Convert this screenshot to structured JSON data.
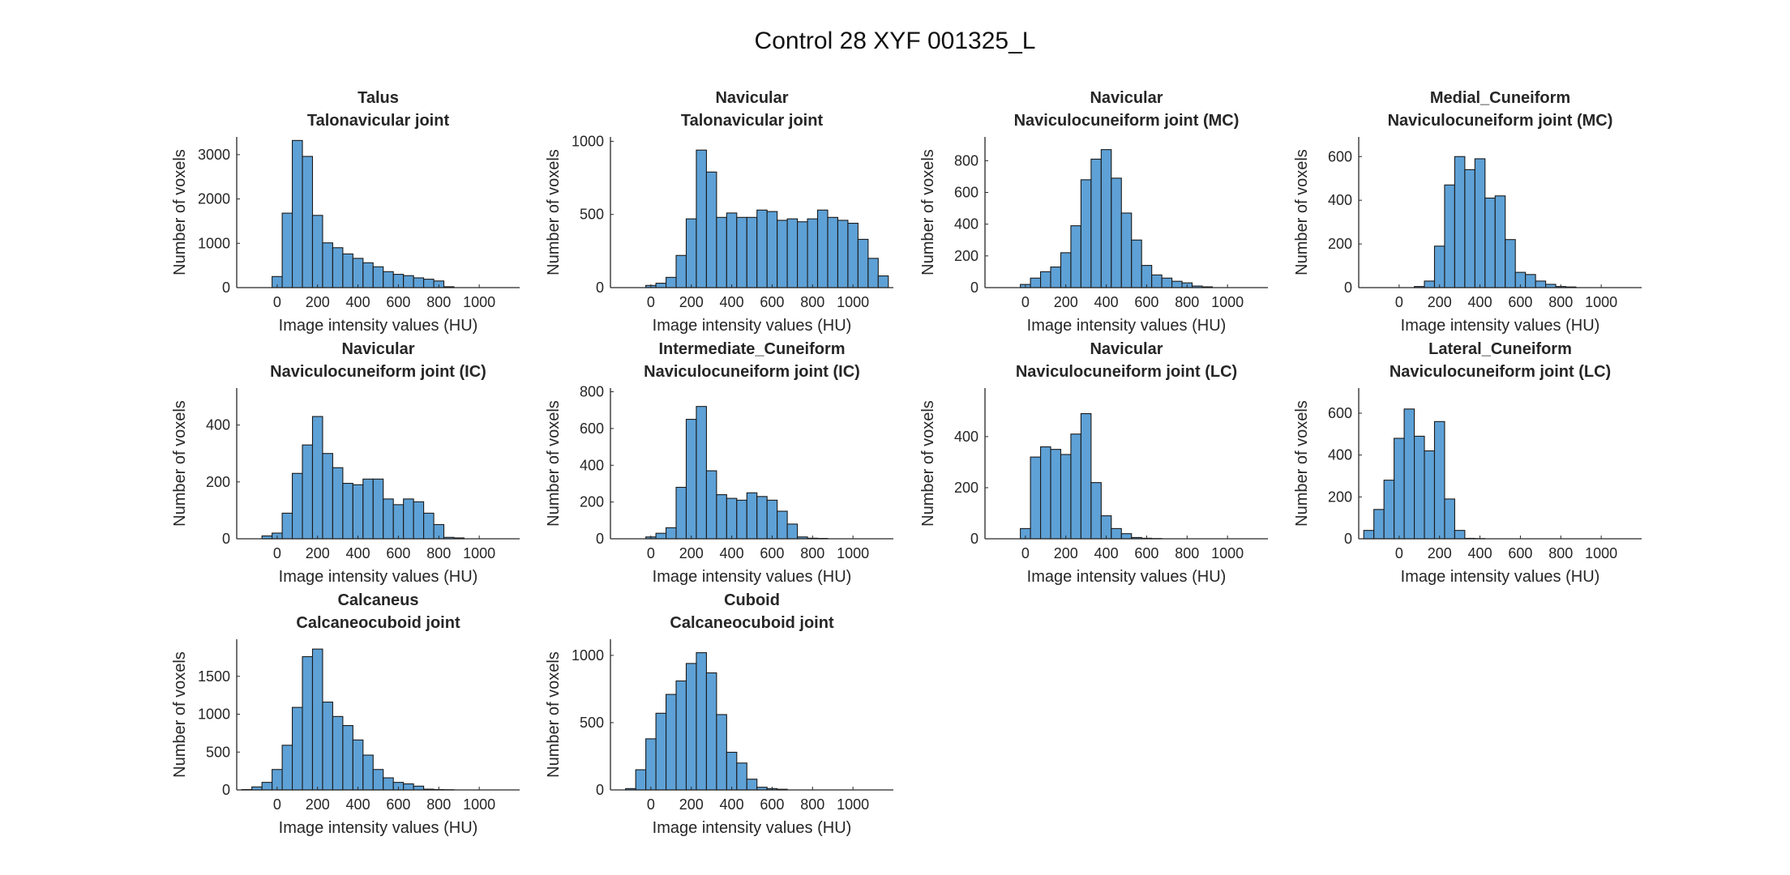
{
  "figure": {
    "title": "Control 28 XYF 001325_L"
  },
  "style": {
    "bar_fill": "#5ea1d6",
    "bar_stroke": "#1a1a1a",
    "axis_color": "#262626",
    "background": "#ffffff"
  },
  "chart_data": [
    {
      "type": "bar",
      "title": [
        "Talus",
        "Talonavicular joint"
      ],
      "xlabel": "Image intensity values (HU)",
      "ylabel": "Number of voxels",
      "bin_width": 50,
      "xlim": [
        -200,
        1200
      ],
      "ylim": [
        0,
        3400
      ],
      "xticks": [
        0,
        200,
        400,
        600,
        800,
        1000
      ],
      "yticks": [
        0,
        1000,
        2000,
        3000
      ],
      "bin_starts": [
        -25,
        25,
        75,
        125,
        175,
        225,
        275,
        325,
        375,
        425,
        475,
        525,
        575,
        625,
        675,
        725,
        775,
        825
      ],
      "values": [
        250,
        1680,
        3320,
        2960,
        1630,
        1010,
        900,
        760,
        660,
        560,
        470,
        360,
        300,
        270,
        220,
        190,
        150,
        20
      ]
    },
    {
      "type": "bar",
      "title": [
        "Navicular",
        "Talonavicular joint"
      ],
      "xlabel": "Image intensity values (HU)",
      "ylabel": "Number of voxels",
      "bin_width": 50,
      "xlim": [
        -200,
        1200
      ],
      "ylim": [
        0,
        1030
      ],
      "xticks": [
        0,
        200,
        400,
        600,
        800,
        1000
      ],
      "yticks": [
        0,
        500,
        1000
      ],
      "bin_starts": [
        -25,
        25,
        75,
        125,
        175,
        225,
        275,
        325,
        375,
        425,
        475,
        525,
        575,
        625,
        675,
        725,
        775,
        825,
        875,
        925,
        975,
        1025,
        1075,
        1125
      ],
      "values": [
        15,
        30,
        70,
        220,
        470,
        940,
        790,
        480,
        510,
        480,
        480,
        530,
        520,
        460,
        470,
        450,
        470,
        530,
        480,
        460,
        440,
        330,
        200,
        80
      ]
    },
    {
      "type": "bar",
      "title": [
        "Navicular",
        "Naviculocuneiform joint (MC)"
      ],
      "xlabel": "Image intensity values (HU)",
      "ylabel": "Number of voxels",
      "bin_width": 50,
      "xlim": [
        -200,
        1200
      ],
      "ylim": [
        0,
        950
      ],
      "xticks": [
        0,
        200,
        400,
        600,
        800,
        1000
      ],
      "yticks": [
        0,
        200,
        400,
        600,
        800
      ],
      "bin_starts": [
        -25,
        25,
        75,
        125,
        175,
        225,
        275,
        325,
        375,
        425,
        475,
        525,
        575,
        625,
        675,
        725,
        775,
        825,
        875
      ],
      "values": [
        20,
        60,
        100,
        130,
        220,
        390,
        680,
        810,
        870,
        690,
        470,
        300,
        140,
        80,
        60,
        40,
        30,
        10,
        5
      ]
    },
    {
      "type": "bar",
      "title": [
        "Medial_Cuneiform",
        "Naviculocuneiform joint (MC)"
      ],
      "xlabel": "Image intensity values (HU)",
      "ylabel": "Number of voxels",
      "bin_width": 50,
      "xlim": [
        -200,
        1200
      ],
      "ylim": [
        0,
        690
      ],
      "xticks": [
        0,
        200,
        400,
        600,
        800,
        1000
      ],
      "yticks": [
        0,
        200,
        400,
        600
      ],
      "bin_starts": [
        75,
        125,
        175,
        225,
        275,
        325,
        375,
        425,
        475,
        525,
        575,
        625,
        675,
        725,
        775,
        825
      ],
      "values": [
        5,
        30,
        190,
        470,
        600,
        540,
        590,
        410,
        420,
        220,
        70,
        60,
        30,
        15,
        5,
        3
      ]
    },
    {
      "type": "bar",
      "title": [
        "Navicular",
        "Naviculocuneiform joint (IC)"
      ],
      "xlabel": "Image intensity values (HU)",
      "ylabel": "Number of voxels",
      "bin_width": 50,
      "xlim": [
        -200,
        1200
      ],
      "ylim": [
        0,
        530
      ],
      "xticks": [
        0,
        200,
        400,
        600,
        800,
        1000
      ],
      "yticks": [
        0,
        200,
        400
      ],
      "bin_starts": [
        -75,
        -25,
        25,
        75,
        125,
        175,
        225,
        275,
        325,
        375,
        425,
        475,
        525,
        575,
        625,
        675,
        725,
        775,
        825,
        875
      ],
      "values": [
        10,
        20,
        90,
        230,
        330,
        430,
        300,
        250,
        195,
        190,
        210,
        210,
        140,
        120,
        140,
        130,
        90,
        50,
        5,
        3
      ]
    },
    {
      "type": "bar",
      "title": [
        "Intermediate_Cuneiform",
        "Naviculocuneiform joint (IC)"
      ],
      "xlabel": "Image intensity values (HU)",
      "ylabel": "Number of voxels",
      "bin_width": 50,
      "xlim": [
        -200,
        1200
      ],
      "ylim": [
        0,
        820
      ],
      "xticks": [
        0,
        200,
        400,
        600,
        800,
        1000
      ],
      "yticks": [
        0,
        200,
        400,
        600,
        800
      ],
      "bin_starts": [
        -25,
        25,
        75,
        125,
        175,
        225,
        275,
        325,
        375,
        425,
        475,
        525,
        575,
        625,
        675,
        725,
        775,
        825
      ],
      "values": [
        10,
        30,
        60,
        280,
        650,
        720,
        370,
        240,
        220,
        210,
        250,
        230,
        210,
        150,
        80,
        10,
        3,
        2
      ]
    },
    {
      "type": "bar",
      "title": [
        "Navicular",
        "Naviculocuneiform joint (LC)"
      ],
      "xlabel": "Image intensity values (HU)",
      "ylabel": "Number of voxels",
      "bin_width": 50,
      "xlim": [
        -200,
        1200
      ],
      "ylim": [
        0,
        590
      ],
      "xticks": [
        0,
        200,
        400,
        600,
        800,
        1000
      ],
      "yticks": [
        0,
        200,
        400
      ],
      "bin_starts": [
        -25,
        25,
        75,
        125,
        175,
        225,
        275,
        325,
        375,
        425,
        475,
        525,
        575,
        625
      ],
      "values": [
        40,
        320,
        360,
        350,
        330,
        410,
        490,
        220,
        90,
        40,
        20,
        5,
        2,
        1
      ]
    },
    {
      "type": "bar",
      "title": [
        "Lateral_Cuneiform",
        "Naviculocuneiform joint (LC)"
      ],
      "xlabel": "Image intensity values (HU)",
      "ylabel": "Number of voxels",
      "bin_width": 50,
      "xlim": [
        -200,
        1200
      ],
      "ylim": [
        0,
        720
      ],
      "xticks": [
        0,
        200,
        400,
        600,
        800,
        1000
      ],
      "yticks": [
        0,
        200,
        400,
        600
      ],
      "bin_starts": [
        -175,
        -125,
        -75,
        -25,
        25,
        75,
        125,
        175,
        225,
        275,
        325,
        375
      ],
      "values": [
        40,
        140,
        280,
        480,
        620,
        490,
        420,
        560,
        190,
        40,
        2,
        1
      ]
    },
    {
      "type": "bar",
      "title": [
        "Calcaneus",
        "Calcaneocuboid joint"
      ],
      "xlabel": "Image intensity values (HU)",
      "ylabel": "Number of voxels",
      "bin_width": 50,
      "xlim": [
        -200,
        1200
      ],
      "ylim": [
        0,
        1990
      ],
      "xticks": [
        0,
        200,
        400,
        600,
        800,
        1000
      ],
      "yticks": [
        0,
        500,
        1000,
        1500
      ],
      "bin_starts": [
        -175,
        -125,
        -75,
        -25,
        25,
        75,
        125,
        175,
        225,
        275,
        325,
        375,
        425,
        475,
        525,
        575,
        625,
        675,
        725,
        775,
        825
      ],
      "values": [
        5,
        40,
        100,
        270,
        590,
        1090,
        1760,
        1860,
        1160,
        970,
        850,
        660,
        460,
        270,
        160,
        100,
        80,
        50,
        10,
        5,
        3
      ]
    },
    {
      "type": "bar",
      "title": [
        "Cuboid",
        "Calcaneocuboid joint"
      ],
      "xlabel": "Image intensity values (HU)",
      "ylabel": "Number of voxels",
      "bin_width": 50,
      "xlim": [
        -200,
        1200
      ],
      "ylim": [
        0,
        1120
      ],
      "xticks": [
        0,
        200,
        400,
        600,
        800,
        1000
      ],
      "yticks": [
        0,
        500,
        1000
      ],
      "bin_starts": [
        -125,
        -75,
        -25,
        25,
        75,
        125,
        175,
        225,
        275,
        325,
        375,
        425,
        475,
        525,
        575,
        625
      ],
      "values": [
        10,
        150,
        380,
        570,
        710,
        810,
        940,
        1020,
        870,
        560,
        280,
        200,
        80,
        20,
        10,
        5
      ]
    }
  ]
}
